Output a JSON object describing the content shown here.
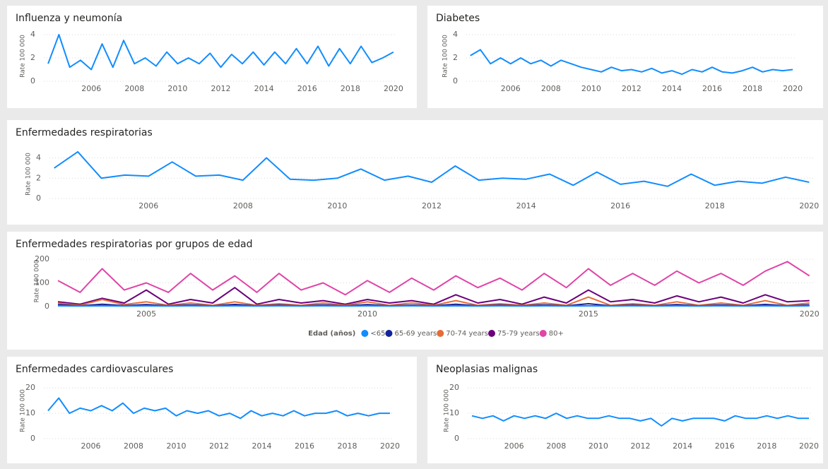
{
  "chart_data": [
    {
      "type": "line",
      "title": "Influenza y neumonía",
      "y_label": "Rate 100 000",
      "color": "#118dff",
      "x": [
        2004.0,
        2004.5,
        2005.0,
        2005.5,
        2006.0,
        2006.5,
        2007.0,
        2007.5,
        2008.0,
        2008.5,
        2009.0,
        2009.5,
        2010.0,
        2010.5,
        2011.0,
        2011.5,
        2012.0,
        2012.5,
        2013.0,
        2013.5,
        2014.0,
        2014.5,
        2015.0,
        2015.5,
        2016.0,
        2016.5,
        2017.0,
        2017.5,
        2018.0,
        2018.5,
        2019.0,
        2019.5,
        2020.0
      ],
      "values": [
        1.5,
        4.0,
        1.2,
        1.8,
        1.0,
        3.2,
        1.2,
        3.5,
        1.5,
        2.0,
        1.3,
        2.5,
        1.5,
        2.0,
        1.5,
        2.4,
        1.2,
        2.3,
        1.5,
        2.5,
        1.4,
        2.5,
        1.5,
        2.8,
        1.5,
        3.0,
        1.3,
        2.8,
        1.5,
        3.0,
        1.6,
        2.0,
        2.5
      ],
      "xlim": [
        2003.8,
        2020.1
      ],
      "xticks": [
        2006,
        2008,
        2010,
        2012,
        2014,
        2016,
        2018,
        2020
      ],
      "ylim": [
        0,
        4.3
      ],
      "yticks": [
        0,
        2,
        4
      ],
      "grid": true
    },
    {
      "type": "line",
      "title": "Diabetes",
      "y_label": "Rate 100 000",
      "color": "#118dff",
      "x": [
        2004.0,
        2004.5,
        2005.0,
        2005.5,
        2006.0,
        2006.5,
        2007.0,
        2007.5,
        2008.0,
        2008.5,
        2009.0,
        2009.5,
        2010.0,
        2010.5,
        2011.0,
        2011.5,
        2012.0,
        2012.5,
        2013.0,
        2013.5,
        2014.0,
        2014.5,
        2015.0,
        2015.5,
        2016.0,
        2016.5,
        2017.0,
        2017.5,
        2018.0,
        2018.5,
        2019.0,
        2019.5,
        2020.0
      ],
      "values": [
        2.2,
        2.7,
        1.5,
        2.0,
        1.5,
        2.0,
        1.5,
        1.8,
        1.3,
        1.8,
        1.5,
        1.2,
        1.0,
        0.8,
        1.2,
        0.9,
        1.0,
        0.8,
        1.1,
        0.7,
        0.9,
        0.6,
        1.0,
        0.8,
        1.2,
        0.8,
        0.7,
        0.9,
        1.2,
        0.8,
        1.0,
        0.9,
        1.0
      ],
      "xlim": [
        2003.8,
        2020.1
      ],
      "xticks": [
        2006,
        2008,
        2010,
        2012,
        2014,
        2016,
        2018,
        2020
      ],
      "ylim": [
        0,
        4.3
      ],
      "yticks": [
        0,
        2,
        4
      ],
      "grid": true
    },
    {
      "type": "line",
      "title": "Enfermedades respiratorias",
      "y_label": "Rate 100 000",
      "color": "#118dff",
      "x": [
        2004.0,
        2004.5,
        2005.0,
        2005.5,
        2006.0,
        2006.5,
        2007.0,
        2007.5,
        2008.0,
        2008.5,
        2009.0,
        2009.5,
        2010.0,
        2010.5,
        2011.0,
        2011.5,
        2012.0,
        2012.5,
        2013.0,
        2013.5,
        2014.0,
        2014.5,
        2015.0,
        2015.5,
        2016.0,
        2016.5,
        2017.0,
        2017.5,
        2018.0,
        2018.5,
        2019.0,
        2019.5,
        2020.0
      ],
      "values": [
        3.0,
        4.6,
        2.0,
        2.3,
        2.2,
        3.6,
        2.2,
        2.3,
        1.8,
        4.0,
        1.9,
        1.8,
        2.0,
        2.9,
        1.8,
        2.2,
        1.6,
        3.2,
        1.8,
        2.0,
        1.9,
        2.4,
        1.3,
        2.6,
        1.4,
        1.7,
        1.2,
        2.4,
        1.3,
        1.7,
        1.5,
        2.1,
        1.6
      ],
      "xlim": [
        2003.9,
        2020.1
      ],
      "xticks": [
        2006,
        2008,
        2010,
        2012,
        2014,
        2016,
        2018,
        2020
      ],
      "ylim": [
        0,
        4.8
      ],
      "yticks": [
        0,
        2,
        4
      ],
      "grid": true
    },
    {
      "type": "line",
      "title": "Enfermedades respiratorias por grupos de edad",
      "y_label": "Rate 100 000",
      "legend_title": "Edad (años)",
      "x": [
        2003.0,
        2003.5,
        2004.0,
        2004.5,
        2005.0,
        2005.5,
        2006.0,
        2006.5,
        2007.0,
        2007.5,
        2008.0,
        2008.5,
        2009.0,
        2009.5,
        2010.0,
        2010.5,
        2011.0,
        2011.5,
        2012.0,
        2012.5,
        2013.0,
        2013.5,
        2014.0,
        2014.5,
        2015.0,
        2015.5,
        2016.0,
        2016.5,
        2017.0,
        2017.5,
        2018.0,
        2018.5,
        2019.0,
        2019.5,
        2020.0
      ],
      "series": [
        {
          "name": "<65",
          "color": "#118dff",
          "values": [
            3,
            2,
            3,
            2,
            3,
            2,
            3,
            2,
            3,
            2,
            3,
            2,
            3,
            2,
            3,
            2,
            3,
            2,
            3,
            2,
            3,
            2,
            3,
            2,
            3,
            2,
            3,
            2,
            3,
            2,
            3,
            2,
            3,
            2,
            3
          ]
        },
        {
          "name": "65-69 years",
          "color": "#12239e",
          "values": [
            8,
            3,
            10,
            4,
            8,
            3,
            7,
            3,
            9,
            3,
            6,
            3,
            7,
            3,
            8,
            3,
            6,
            3,
            10,
            3,
            6,
            3,
            7,
            3,
            12,
            3,
            6,
            3,
            8,
            3,
            7,
            3,
            9,
            3,
            7
          ]
        },
        {
          "name": "70-74 years",
          "color": "#e66c37",
          "values": [
            15,
            5,
            30,
            8,
            20,
            5,
            15,
            5,
            20,
            5,
            12,
            5,
            15,
            5,
            20,
            5,
            15,
            5,
            25,
            5,
            12,
            5,
            15,
            5,
            40,
            5,
            12,
            5,
            20,
            5,
            15,
            5,
            25,
            5,
            15
          ]
        },
        {
          "name": "75-79 years",
          "color": "#6b007b",
          "values": [
            20,
            10,
            35,
            15,
            70,
            10,
            30,
            15,
            80,
            10,
            30,
            15,
            25,
            10,
            30,
            15,
            25,
            10,
            50,
            15,
            30,
            10,
            40,
            15,
            70,
            20,
            30,
            15,
            45,
            20,
            40,
            15,
            50,
            20,
            25
          ]
        },
        {
          "name": "80+",
          "color": "#e044a7",
          "values": [
            110,
            60,
            160,
            70,
            100,
            60,
            140,
            70,
            130,
            60,
            140,
            70,
            100,
            50,
            110,
            60,
            120,
            70,
            130,
            80,
            120,
            70,
            140,
            80,
            160,
            90,
            140,
            90,
            150,
            100,
            140,
            90,
            150,
            190,
            130
          ]
        }
      ],
      "xlim": [
        2003.0,
        2020.1
      ],
      "xticks": [
        2005,
        2010,
        2015,
        2020
      ],
      "ylim": [
        0,
        215
      ],
      "yticks": [
        0,
        100,
        200
      ],
      "grid": true
    },
    {
      "type": "line",
      "title": "Enfermedades cardiovasculares",
      "y_label": "Rate 100 000",
      "color": "#118dff",
      "x": [
        2004.0,
        2004.5,
        2005.0,
        2005.5,
        2006.0,
        2006.5,
        2007.0,
        2007.5,
        2008.0,
        2008.5,
        2009.0,
        2009.5,
        2010.0,
        2010.5,
        2011.0,
        2011.5,
        2012.0,
        2012.5,
        2013.0,
        2013.5,
        2014.0,
        2014.5,
        2015.0,
        2015.5,
        2016.0,
        2016.5,
        2017.0,
        2017.5,
        2018.0,
        2018.5,
        2019.0,
        2019.5,
        2020.0
      ],
      "values": [
        11,
        16,
        10,
        12,
        11,
        13,
        11,
        14,
        10,
        12,
        11,
        12,
        9,
        11,
        10,
        11,
        9,
        10,
        8,
        11,
        9,
        10,
        9,
        11,
        9,
        10,
        10,
        11,
        9,
        10,
        9,
        10,
        10
      ],
      "xlim": [
        2003.8,
        2020.1
      ],
      "xticks": [
        2006,
        2008,
        2010,
        2012,
        2014,
        2016,
        2018,
        2020
      ],
      "ylim": [
        0,
        22
      ],
      "yticks": [
        0,
        10,
        20
      ],
      "grid": true
    },
    {
      "type": "line",
      "title": "Neoplasias malignas",
      "y_label": "Rate 100 000",
      "color": "#118dff",
      "x": [
        2004.0,
        2004.5,
        2005.0,
        2005.5,
        2006.0,
        2006.5,
        2007.0,
        2007.5,
        2008.0,
        2008.5,
        2009.0,
        2009.5,
        2010.0,
        2010.5,
        2011.0,
        2011.5,
        2012.0,
        2012.5,
        2013.0,
        2013.5,
        2014.0,
        2014.5,
        2015.0,
        2015.5,
        2016.0,
        2016.5,
        2017.0,
        2017.5,
        2018.0,
        2018.5,
        2019.0,
        2019.5,
        2020.0
      ],
      "values": [
        9,
        8,
        9,
        7,
        9,
        8,
        9,
        8,
        10,
        8,
        9,
        8,
        8,
        9,
        8,
        8,
        7,
        8,
        5,
        8,
        7,
        8,
        8,
        8,
        7,
        9,
        8,
        8,
        9,
        8,
        9,
        8,
        8
      ],
      "xlim": [
        2003.8,
        2020.1
      ],
      "xticks": [
        2006,
        2008,
        2010,
        2012,
        2014,
        2016,
        2018,
        2020
      ],
      "ylim": [
        0,
        22
      ],
      "yticks": [
        0,
        10,
        20
      ],
      "grid": true
    }
  ]
}
